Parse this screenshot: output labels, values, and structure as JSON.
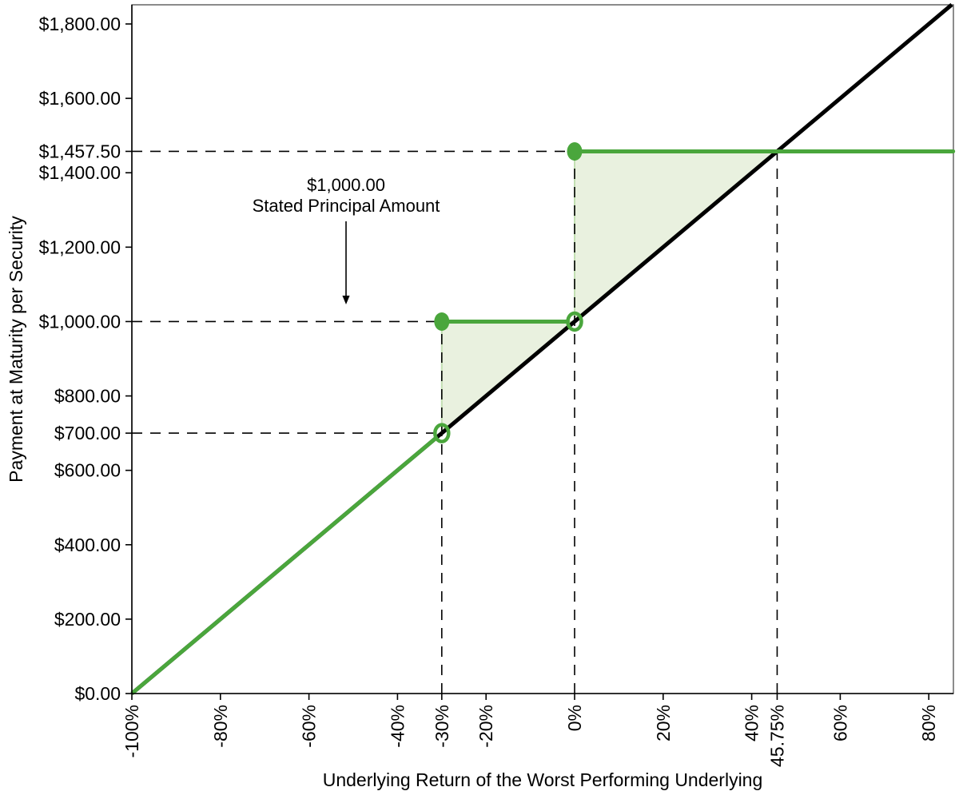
{
  "chart_data": {
    "type": "line",
    "title": "",
    "xlabel": "Underlying Return of the Worst Performing Underlying",
    "ylabel": "Payment at Maturity per Security",
    "x_axis": {
      "min": -100,
      "max": 85.5,
      "unit": "%",
      "tick_values": [
        -100,
        -80,
        -60,
        -40,
        -30,
        -20,
        0,
        20,
        40,
        45.75,
        60,
        80
      ],
      "tick_labels": [
        "-100%",
        "-80%",
        "-60%",
        "-40%",
        "-30%",
        "-20%",
        "0%",
        "20%",
        "40%",
        "45.75%",
        "60%",
        "80%"
      ]
    },
    "y_axis": {
      "min": 0,
      "max": 1850,
      "unit": "USD",
      "tick_values": [
        0,
        200,
        400,
        600,
        700,
        800,
        1000,
        1200,
        1400,
        1457.5,
        1600,
        1800
      ],
      "tick_labels": [
        "$0.00",
        "$200.00",
        "$400.00",
        "$600.00",
        "$700.00",
        "$800.00",
        "$1,000.00",
        "$1,200.00",
        "$1,400.00",
        "$1,457.50",
        "$1,600.00",
        "$1,800.00"
      ]
    },
    "series": [
      {
        "name": "underlying-return-1-to-1",
        "style": "solid",
        "color": "#000000",
        "width": 5,
        "points": [
          [
            -100,
            0
          ],
          [
            85.2,
            1852
          ]
        ]
      },
      {
        "name": "payment-at-maturity",
        "style": "solid",
        "color": "#4AA63C",
        "width": 5,
        "segments": [
          {
            "points": [
              [
                -100,
                0
              ],
              [
                -30,
                700
              ]
            ]
          },
          {
            "points": [
              [
                -30,
                1000
              ],
              [
                0,
                1000
              ]
            ]
          },
          {
            "points": [
              [
                0,
                1457.5
              ],
              [
                85.5,
                1457.5
              ]
            ]
          }
        ],
        "markers_filled": [
          [
            -30,
            1000
          ],
          [
            0,
            1457.5
          ]
        ],
        "markers_open": [
          [
            -30,
            700
          ],
          [
            0,
            1000
          ]
        ]
      }
    ],
    "dashed_guides": [
      {
        "type": "h",
        "y": 1457.5,
        "x_to": 0
      },
      {
        "type": "h",
        "y": 1000,
        "x_to": -30
      },
      {
        "type": "h",
        "y": 700,
        "x_to": -30
      },
      {
        "type": "v",
        "x": -30,
        "y_to": 1000
      },
      {
        "type": "v",
        "x": 0,
        "y_to": 1457.5
      },
      {
        "type": "v",
        "x": 45.75,
        "y_to": 1457.5
      }
    ],
    "shaded_regions": [
      {
        "points": [
          [
            -30,
            700
          ],
          [
            -30,
            1000
          ],
          [
            0,
            1000
          ]
        ]
      },
      {
        "points": [
          [
            0,
            1000
          ],
          [
            0,
            1457.5
          ],
          [
            45.75,
            1457.5
          ]
        ]
      }
    ],
    "annotation": {
      "line1": "$1,000.00",
      "line2": "Stated Principal Amount",
      "arrow_points_to": {
        "x": -51.6,
        "y": 1000
      }
    },
    "colors": {
      "payoff_green": "#4AA63C",
      "shade_fill": "#E9F1DF",
      "shade_edge": "#C2DFB2",
      "guide_black": "#000000",
      "frame_gray": "#4d4d4d"
    },
    "legend": {
      "visible": false
    },
    "grid": false
  }
}
